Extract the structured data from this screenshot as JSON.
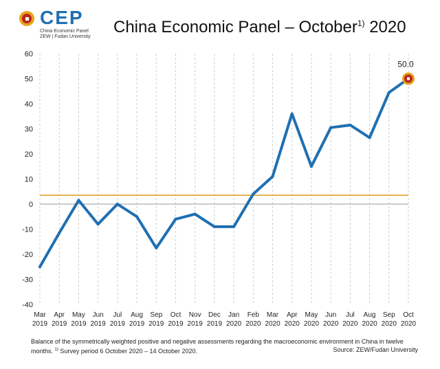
{
  "logo": {
    "word": "CEP",
    "line1": "China Economic Panel",
    "line2": "ZEW | Fudan University"
  },
  "title": {
    "main": "China Economic Panel – October",
    "superscript": "1)",
    "year": "2020"
  },
  "footer": {
    "text_a": "Balance of the symmetrically weighted positive and negative assessments regarding the macroeconomic environment in China in twelve months.",
    "footnote_mark": "1)",
    "text_b": "Survey period 6 October 2020 – 14 October 2020.",
    "source": "Source: ZEW/Fudan University"
  },
  "colors": {
    "line": "#1f6fb2",
    "reference_line": "#e0a32a",
    "zero_line": "#999999",
    "grid": "#cccccc",
    "marker_outer": "#e8a21a",
    "marker_inner": "#b5281e"
  },
  "chart_data": {
    "type": "line",
    "x_months": [
      "Mar",
      "Apr",
      "May",
      "Jun",
      "Jul",
      "Aug",
      "Sep",
      "Oct",
      "Nov",
      "Dec",
      "Jan",
      "Feb",
      "Mar",
      "Apr",
      "May",
      "Jun",
      "Jul",
      "Aug",
      "Sep",
      "Oct"
    ],
    "x_years": [
      "2019",
      "2019",
      "2019",
      "2019",
      "2019",
      "2019",
      "2019",
      "2019",
      "2019",
      "2019",
      "2020",
      "2020",
      "2020",
      "2020",
      "2020",
      "2020",
      "2020",
      "2020",
      "2020",
      "2020"
    ],
    "values": [
      -25,
      -11.5,
      1.5,
      -8,
      0,
      -5,
      -17.5,
      -6,
      -4,
      -9,
      -9,
      4,
      11,
      36,
      15,
      30.5,
      31.5,
      26.5,
      44.5,
      50.0
    ],
    "reference_value": 3.5,
    "ylim": [
      -40,
      60
    ],
    "yticks": [
      -40,
      -30,
      -20,
      -10,
      0,
      10,
      20,
      30,
      40,
      50,
      60
    ],
    "last_label": "50.0",
    "grid": "vertical dashed"
  }
}
